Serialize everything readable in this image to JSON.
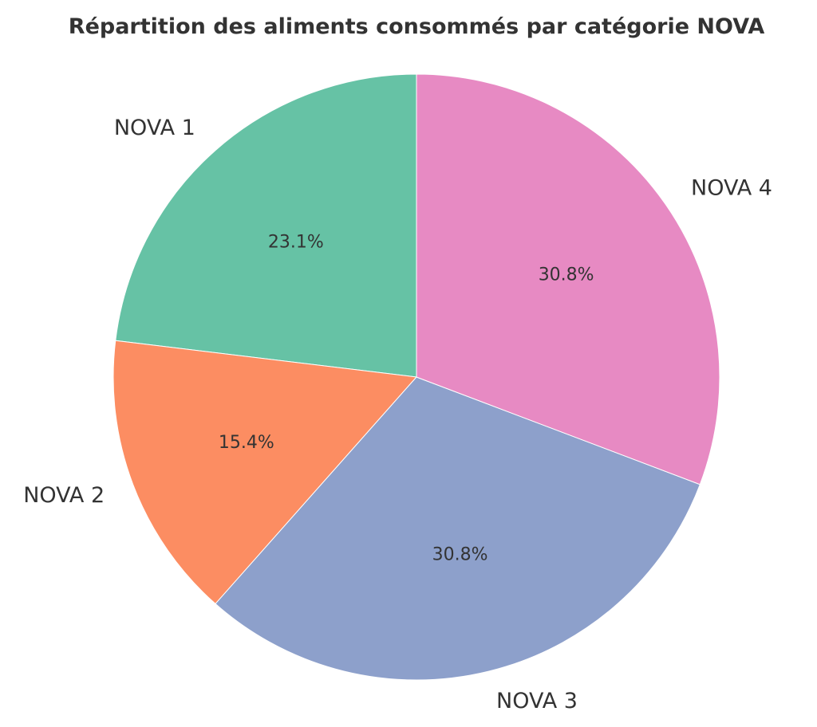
{
  "chart_data": {
    "type": "pie",
    "title": "Répartition des aliments consommés par catégorie NOVA",
    "labels": [
      "NOVA 1",
      "NOVA 2",
      "NOVA 3",
      "NOVA 4"
    ],
    "values": [
      23.1,
      15.4,
      30.8,
      30.8
    ],
    "pct_labels": [
      "23.1%",
      "15.4%",
      "30.8%",
      "30.8%"
    ],
    "colors": [
      "#66c2a5",
      "#fc8d62",
      "#8da0cb",
      "#e78ac3"
    ],
    "start_angle": 90,
    "direction": "counterclockwise"
  }
}
